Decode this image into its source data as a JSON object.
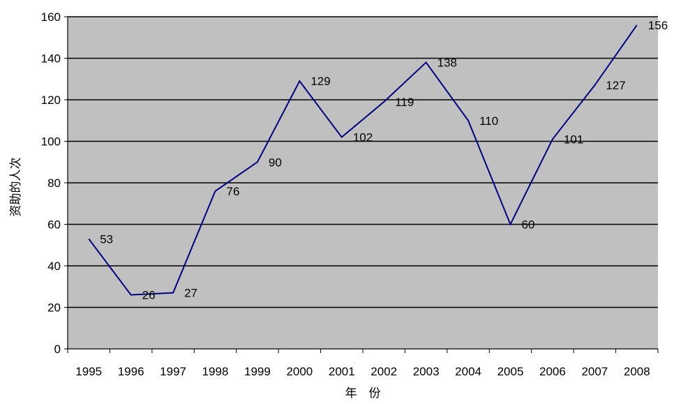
{
  "chart_data": {
    "type": "line",
    "title": "",
    "xlabel": "年　份",
    "ylabel": "资助的人次",
    "categories": [
      "1995",
      "1996",
      "1997",
      "1998",
      "1999",
      "2000",
      "2001",
      "2002",
      "2003",
      "2004",
      "2005",
      "2006",
      "2007",
      "2008"
    ],
    "series": [
      {
        "values": [
          53,
          26,
          27,
          76,
          90,
          129,
          102,
          119,
          138,
          110,
          60,
          101,
          127,
          156
        ]
      }
    ],
    "ylim": [
      0,
      160
    ],
    "yticks": [
      0,
      20,
      40,
      60,
      80,
      100,
      120,
      140,
      160
    ],
    "grid": true,
    "legend": "none",
    "colors": {
      "plot_background": "#c0c0c0",
      "line": "#000080",
      "gridline": "#000000"
    }
  }
}
